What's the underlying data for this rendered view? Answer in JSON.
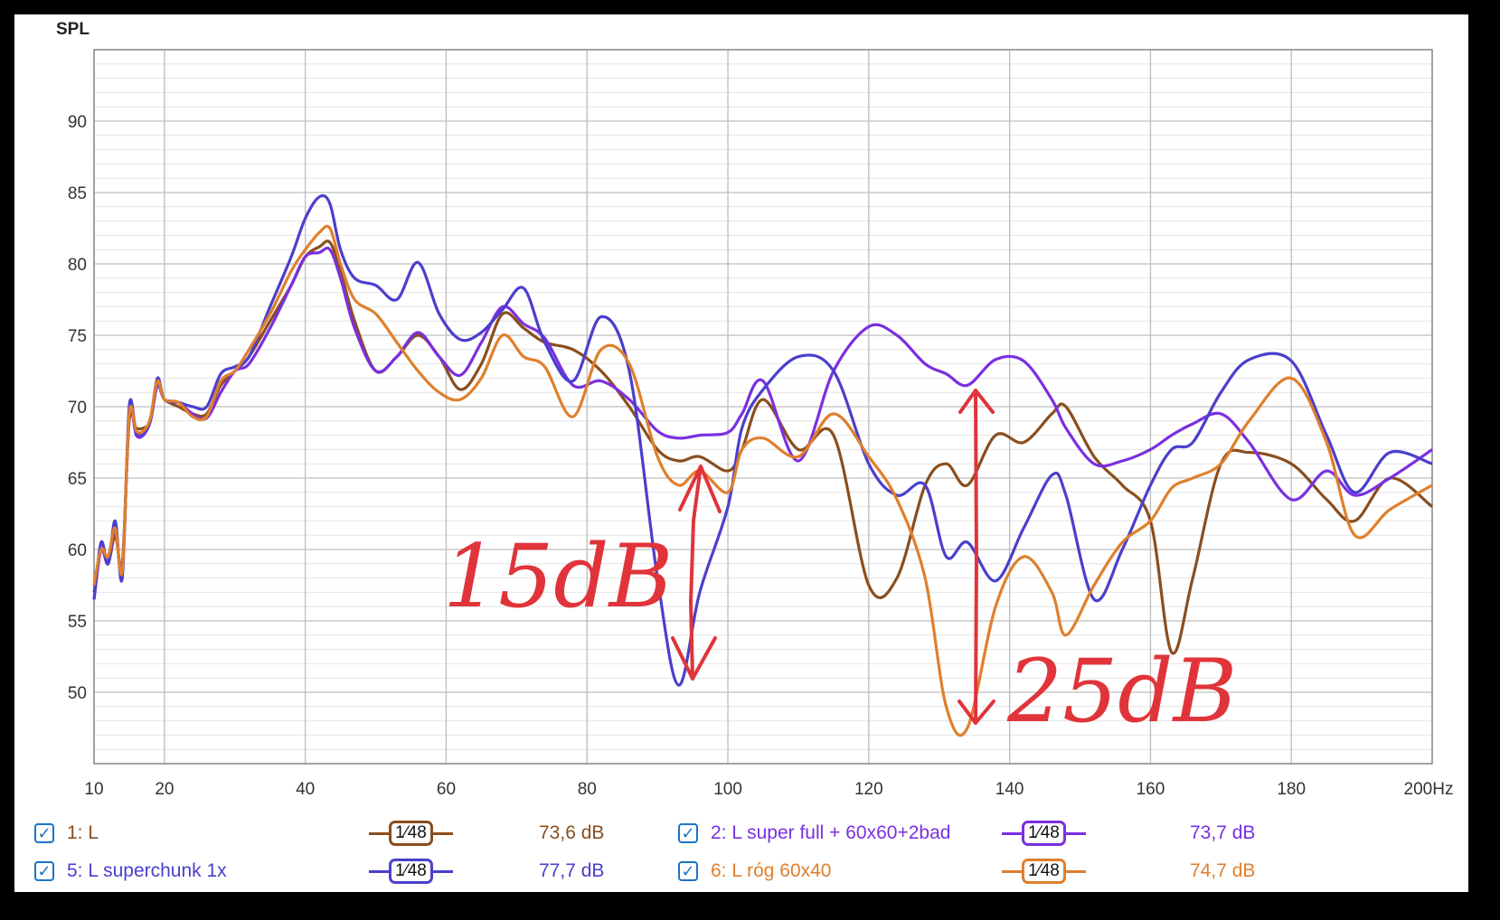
{
  "chart_data": {
    "type": "line",
    "ylabel": "SPL",
    "x_unit": "Hz",
    "xlim": [
      10,
      200
    ],
    "ylim": [
      45,
      95
    ],
    "x_ticks": [
      "10",
      "20",
      "40",
      "60",
      "80",
      "100",
      "120",
      "140",
      "160",
      "180",
      "200"
    ],
    "y_ticks": [
      "50",
      "55",
      "60",
      "65",
      "70",
      "75",
      "80",
      "85",
      "90"
    ],
    "grid": true,
    "series": [
      {
        "name": "1: L",
        "color": "#8a4e1e",
        "x": [
          10,
          11,
          12,
          13,
          14,
          15,
          16,
          17,
          18,
          19,
          20,
          22,
          24,
          26,
          28,
          30,
          32,
          35,
          38,
          40,
          42,
          43.5,
          45,
          47,
          50,
          53,
          56,
          59,
          62,
          65,
          68,
          71,
          74,
          78,
          82,
          86,
          90,
          93,
          96,
          100,
          102,
          105,
          110,
          115,
          120,
          124,
          128,
          131,
          134,
          138,
          142,
          146,
          148,
          152,
          156,
          160,
          163,
          166,
          170,
          174,
          180,
          185,
          189,
          194,
          200
        ],
        "y": [
          57,
          60,
          59,
          61,
          59,
          69,
          68.5,
          68.5,
          69,
          71.5,
          70.5,
          70,
          69.5,
          69.5,
          71.5,
          72.5,
          73.5,
          76,
          78.5,
          80.5,
          81.2,
          81.5,
          79.5,
          76,
          72.5,
          73.5,
          75,
          73.5,
          71.2,
          73,
          76.5,
          75.5,
          74.5,
          74,
          72.5,
          70,
          67,
          66.2,
          66.5,
          65.5,
          67,
          70.5,
          67,
          68,
          57.5,
          58,
          64.5,
          66,
          64.5,
          68,
          67.5,
          69.5,
          70,
          66.5,
          64.5,
          62,
          52.8,
          58,
          66,
          66.8,
          66,
          63.5,
          62,
          65,
          63
        ]
      },
      {
        "name": "2: L super full + 60x60+2bad",
        "color": "#7b2fe0",
        "x": [
          10,
          11,
          12,
          13,
          14,
          15,
          16,
          17,
          18,
          19,
          20,
          22,
          24,
          26,
          28,
          30,
          32,
          35,
          38,
          40,
          42,
          43.5,
          45,
          47,
          50,
          53,
          56,
          59,
          62,
          65,
          68,
          71,
          74,
          78,
          82,
          86,
          90,
          93,
          96,
          100,
          102,
          105,
          110,
          115,
          120,
          124,
          128,
          131,
          134,
          138,
          142,
          146,
          148,
          152,
          156,
          160,
          163,
          166,
          170,
          174,
          180,
          185,
          189,
          194,
          200
        ],
        "y": [
          56.5,
          60,
          59,
          61.5,
          58.5,
          69.5,
          68,
          68,
          69,
          71.5,
          70.5,
          70.3,
          69.5,
          69.2,
          71,
          72.5,
          73,
          75.5,
          78.5,
          80.5,
          80.8,
          81,
          79,
          75.5,
          72.5,
          73.5,
          75.2,
          73.5,
          72.2,
          74.5,
          77,
          75.8,
          74.8,
          71.5,
          71.8,
          70.5,
          68.3,
          67.8,
          68,
          68.2,
          69.5,
          71.8,
          66.2,
          72.5,
          75.6,
          75,
          73,
          72.3,
          71.5,
          73.3,
          73.2,
          70.5,
          68.5,
          66,
          66.2,
          67,
          68,
          68.8,
          69.5,
          67.5,
          63.5,
          65.5,
          63.8,
          65,
          67
        ]
      },
      {
        "name": "5: L superchunk 1x",
        "color": "#4a3fcc",
        "x": [
          10,
          11,
          12,
          13,
          14,
          15,
          16,
          17,
          18,
          19,
          20,
          22,
          24,
          26,
          28,
          30,
          32,
          35,
          38,
          40,
          42,
          43.5,
          45,
          47,
          50,
          53,
          56,
          59,
          62,
          65,
          68,
          71,
          74,
          78,
          82,
          86,
          90,
          93,
          96,
          100,
          102,
          105,
          110,
          115,
          120,
          124,
          128,
          131,
          134,
          138,
          142,
          146,
          148,
          152,
          156,
          160,
          163,
          166,
          170,
          174,
          180,
          185,
          189,
          194,
          200
        ],
        "y": [
          56.5,
          60.5,
          59,
          62,
          58,
          70,
          68.2,
          68.2,
          69,
          72,
          70.5,
          70.3,
          70,
          70,
          72.3,
          72.8,
          73.5,
          77,
          80.5,
          83.2,
          84.7,
          84.2,
          81,
          79,
          78.5,
          77.5,
          80.1,
          76.5,
          74.7,
          75.2,
          76.8,
          78.3,
          74.5,
          71.8,
          76.3,
          72.5,
          58,
          50.5,
          57,
          63,
          68.5,
          71.2,
          73.5,
          72.5,
          66,
          63.8,
          64.5,
          59.5,
          60.5,
          57.8,
          61.5,
          65.2,
          63.8,
          56.5,
          60,
          64.5,
          67,
          67.5,
          71,
          73.3,
          73.2,
          68,
          64,
          66.8,
          66
        ]
      },
      {
        "name": "6: L róg 60x40",
        "color": "#e07f2c",
        "x": [
          10,
          11,
          12,
          13,
          14,
          15,
          16,
          17,
          18,
          19,
          20,
          22,
          24,
          26,
          28,
          30,
          32,
          35,
          38,
          40,
          42,
          43.5,
          45,
          47,
          50,
          53,
          56,
          59,
          62,
          65,
          68,
          71,
          74,
          78,
          82,
          86,
          90,
          93,
          96,
          100,
          102,
          105,
          110,
          115,
          120,
          124,
          128,
          131,
          134,
          138,
          142,
          146,
          148,
          152,
          156,
          160,
          163,
          166,
          170,
          174,
          180,
          185,
          189,
          194,
          200
        ],
        "y": [
          57.5,
          60,
          59.5,
          61.5,
          58.5,
          69.5,
          68.3,
          68.3,
          69.2,
          71.8,
          70.5,
          70.3,
          69.3,
          69.3,
          71.8,
          72.5,
          74,
          76.5,
          79.5,
          81,
          82.2,
          82.5,
          80,
          77.5,
          76.5,
          74.5,
          72.5,
          71,
          70.5,
          72,
          75,
          73.5,
          72.8,
          69.3,
          74,
          73,
          66.5,
          64.5,
          65.5,
          64,
          67,
          67.8,
          66.5,
          69.5,
          66.5,
          63.5,
          58,
          49,
          47.5,
          56,
          59.5,
          57,
          54,
          57.5,
          60.5,
          62,
          64.3,
          65,
          66,
          69,
          72,
          67.5,
          61,
          62.8,
          64.5
        ]
      }
    ],
    "annotations": [
      "15dB",
      "25dB"
    ]
  },
  "legend": {
    "items": [
      {
        "label": "1: L",
        "smoothing": "1⁄48",
        "level": "73,6 dB",
        "color": "#8a4e1e",
        "check": "✓"
      },
      {
        "label": "2: L super full + 60x60+2bad",
        "smoothing": "1⁄48",
        "level": "73,7 dB",
        "color": "#7b2fe0",
        "check": "✓"
      },
      {
        "label": "5: L superchunk 1x",
        "smoothing": "1⁄48",
        "level": "77,7 dB",
        "color": "#4a3fcc",
        "check": "✓"
      },
      {
        "label": "6: L róg 60x40",
        "smoothing": "1⁄48",
        "level": "74,7 dB",
        "color": "#e07f2c",
        "check": "✓"
      }
    ]
  },
  "annotation_color": "#e0343a"
}
